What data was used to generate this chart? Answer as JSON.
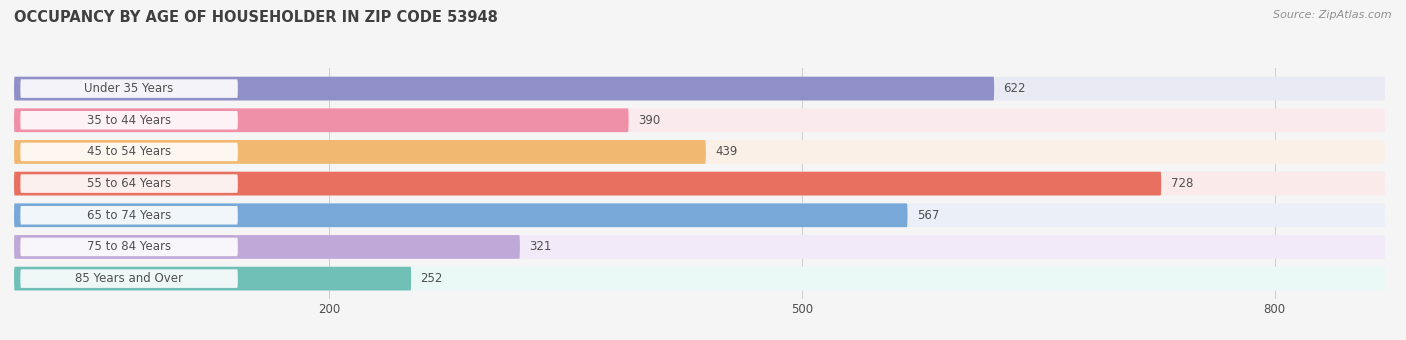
{
  "title": "OCCUPANCY BY AGE OF HOUSEHOLDER IN ZIP CODE 53948",
  "source": "Source: ZipAtlas.com",
  "categories": [
    "Under 35 Years",
    "35 to 44 Years",
    "45 to 54 Years",
    "55 to 64 Years",
    "65 to 74 Years",
    "75 to 84 Years",
    "85 Years and Over"
  ],
  "values": [
    622,
    390,
    439,
    728,
    567,
    321,
    252
  ],
  "bar_colors": [
    "#9090c8",
    "#f090a8",
    "#f0b870",
    "#e87060",
    "#78a8d8",
    "#c0a8d8",
    "#70c0b8"
  ],
  "bar_bg_colors": [
    "#eaeaf4",
    "#faeaee",
    "#faf0e8",
    "#faeaea",
    "#eaeff8",
    "#f2eaf8",
    "#eaf8f6"
  ],
  "xlim_data": [
    0,
    870
  ],
  "xticks": [
    200,
    500,
    800
  ],
  "background_color": "#f5f5f5",
  "title_color": "#404040",
  "label_color": "#505050",
  "source_color": "#909090",
  "value_fontsize": 8.5,
  "label_fontsize": 8.5,
  "title_fontsize": 10.5
}
